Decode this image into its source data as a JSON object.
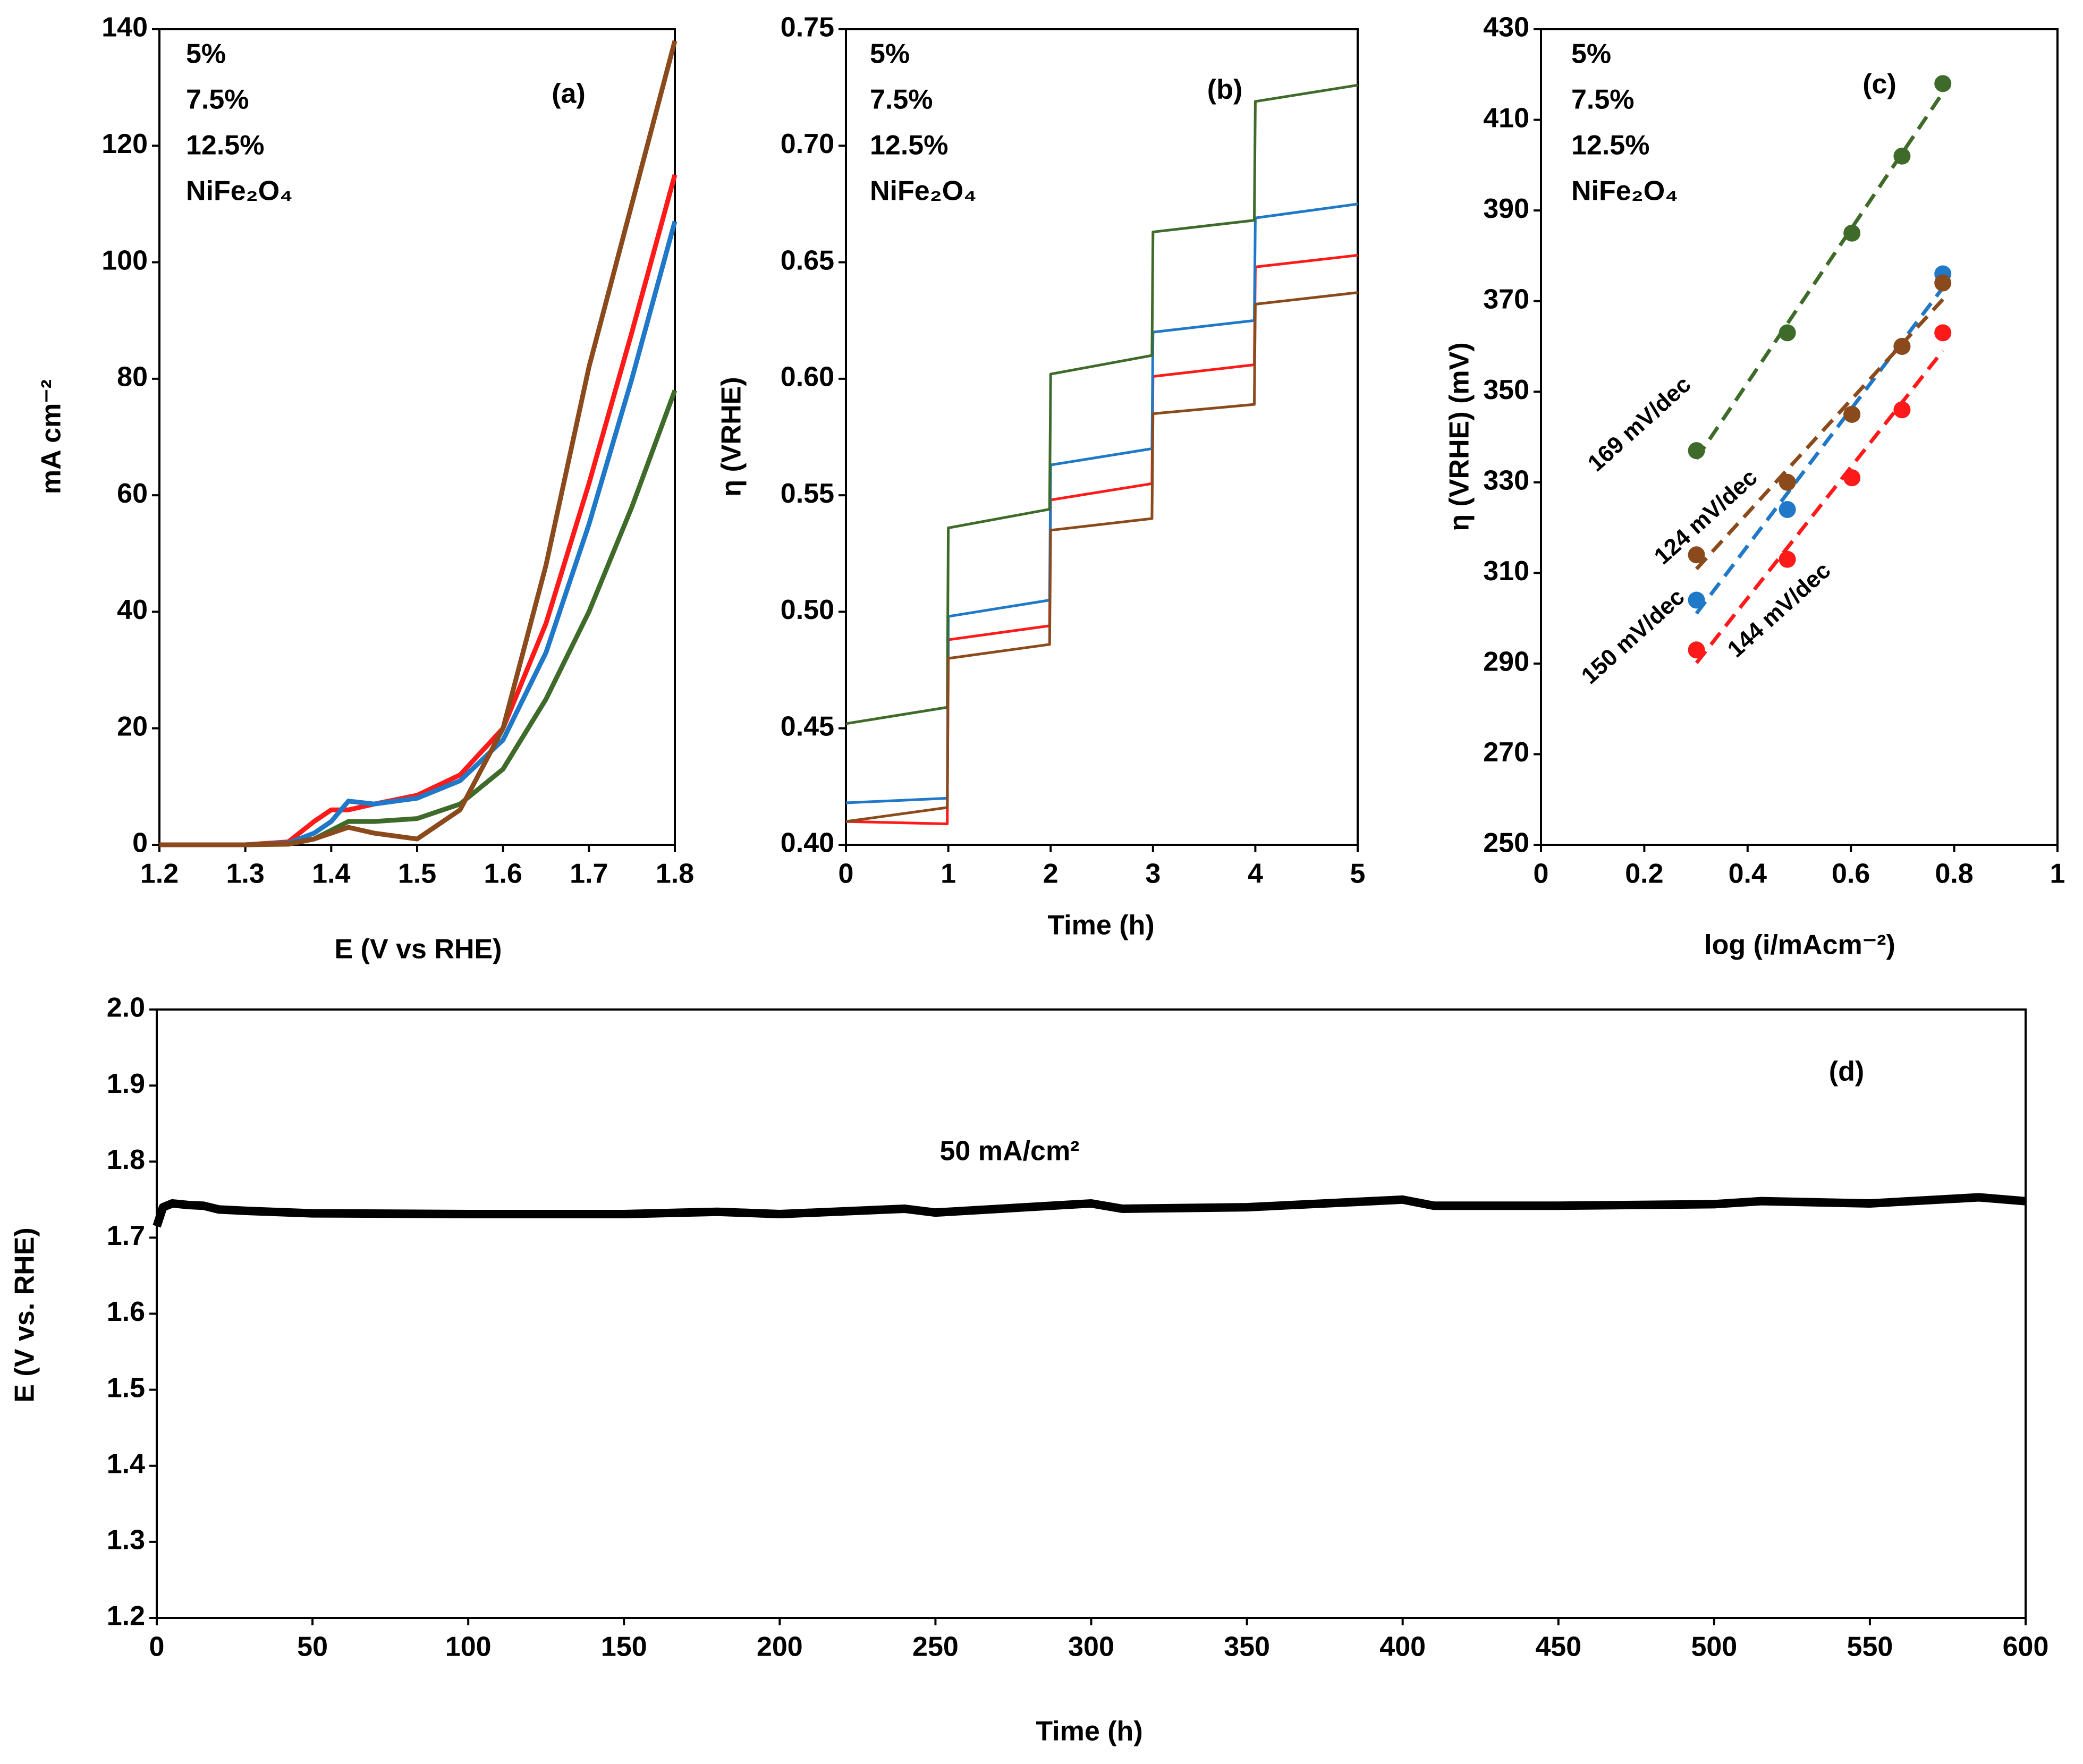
{
  "chart_data": [
    {
      "type": "line",
      "panel_label": "(a)",
      "x_label": "E (V vs RHE)",
      "y_label": "mA cm⁻²",
      "x": [
        1.2,
        1.3,
        1.35,
        1.38,
        1.4,
        1.42,
        1.45,
        1.5,
        1.55,
        1.6,
        1.65,
        1.7,
        1.75,
        1.8
      ],
      "series": [
        {
          "name": "5%",
          "color": "#ff1a1a",
          "values": [
            0,
            0,
            0.5,
            4,
            6,
            6,
            7,
            8.5,
            12,
            20,
            38,
            62,
            88,
            115
          ]
        },
        {
          "name": "7.5%",
          "color": "#1f78c8",
          "values": [
            0,
            0,
            0.3,
            2,
            4,
            7.5,
            7,
            8,
            11,
            18,
            33,
            55,
            80,
            107
          ]
        },
        {
          "name": "12.5%",
          "color": "#3f6b2a",
          "values": [
            0,
            0,
            0.2,
            1,
            2.5,
            4,
            4,
            4.5,
            7,
            13,
            25,
            40,
            58,
            78
          ]
        },
        {
          "name": "NiFe₂O₄",
          "color": "#8b4a1c",
          "values": [
            0,
            0,
            0.1,
            1,
            2,
            3,
            2,
            1,
            6,
            20,
            48,
            82,
            110,
            138
          ]
        }
      ],
      "xlim": [
        1.2,
        1.8
      ],
      "xticks": [
        1.2,
        1.3,
        1.4,
        1.5,
        1.6,
        1.7,
        1.8
      ],
      "ylim": [
        0,
        140
      ],
      "yticks": [
        0,
        20,
        40,
        60,
        80,
        100,
        120,
        140
      ],
      "legend": "upper-left"
    },
    {
      "type": "line",
      "panel_label": "(b)",
      "x_label": "Time (h)",
      "y_label": "η (VRHE)",
      "x": [
        0,
        0.99,
        1,
        1.99,
        2,
        2.99,
        3,
        3.99,
        4,
        5
      ],
      "series": [
        {
          "name": "5%",
          "color": "#ff1a1a",
          "values": [
            0.41,
            0.409,
            0.488,
            0.494,
            0.548,
            0.555,
            0.601,
            0.606,
            0.648,
            0.653
          ]
        },
        {
          "name": "7.5%",
          "color": "#1f78c8",
          "values": [
            0.418,
            0.42,
            0.498,
            0.505,
            0.563,
            0.57,
            0.62,
            0.625,
            0.669,
            0.675
          ]
        },
        {
          "name": "12.5%",
          "color": "#3f6b2a",
          "values": [
            0.452,
            0.459,
            0.536,
            0.544,
            0.602,
            0.61,
            0.663,
            0.668,
            0.719,
            0.726
          ]
        },
        {
          "name": "NiFe₂O₄",
          "color": "#8b4a1c",
          "values": [
            0.41,
            0.416,
            0.48,
            0.486,
            0.535,
            0.54,
            0.585,
            0.589,
            0.632,
            0.637
          ]
        }
      ],
      "xlim": [
        0,
        5
      ],
      "xticks": [
        0,
        1,
        2,
        3,
        4,
        5
      ],
      "ylim": [
        0.4,
        0.75
      ],
      "yticks": [
        {
          "value": 0.4,
          "label": "0.40"
        },
        {
          "value": 0.45,
          "label": "0.45"
        },
        {
          "value": 0.5,
          "label": "0.50"
        },
        {
          "value": 0.55,
          "label": "0.55"
        },
        {
          "value": 0.6,
          "label": "0.60"
        },
        {
          "value": 0.65,
          "label": "0.65"
        },
        {
          "value": 0.7,
          "label": "0.70"
        },
        {
          "value": 0.75,
          "label": "0.75"
        }
      ],
      "legend": "upper-left"
    },
    {
      "type": "scatter",
      "panel_label": "(c)",
      "x_label": "log (i/mAcm⁻²)",
      "y_label": "η (VRHE) (mV)",
      "x": [
        0.301,
        0.477,
        0.602,
        0.699,
        0.778
      ],
      "series": [
        {
          "name": "5%",
          "color": "#ff1a1a",
          "values": [
            293,
            313,
            331,
            346,
            363
          ],
          "slope_label": "144 mV/dec"
        },
        {
          "name": "7.5%",
          "color": "#1f78c8",
          "values": [
            304,
            324,
            345,
            360,
            376
          ],
          "slope_label": "150 mV/dec"
        },
        {
          "name": "12.5%",
          "color": "#3f6b2a",
          "values": [
            337,
            363,
            385,
            402,
            418
          ],
          "slope_label": "169 mV/dec"
        },
        {
          "name": "NiFe₂O₄",
          "color": "#8b4a1c",
          "values": [
            314,
            330,
            345,
            360,
            374
          ],
          "slope_label": "124 mV/dec"
        }
      ],
      "xlim": [
        0,
        1
      ],
      "xticks": [
        0,
        0.2,
        0.4,
        0.6,
        0.8,
        1
      ],
      "ylim": [
        250,
        430
      ],
      "yticks": [
        250,
        270,
        290,
        310,
        330,
        350,
        370,
        390,
        410,
        430
      ],
      "trendline": true,
      "legend": "upper-left"
    },
    {
      "type": "line",
      "panel_label": "(d)",
      "x_label": "Time (h)",
      "y_label": "E (V vs. RHE)",
      "annotation": "50 mA/cm²",
      "x": [
        0,
        2,
        5,
        10,
        15,
        17,
        20,
        30,
        50,
        100,
        150,
        180,
        200,
        240,
        250,
        300,
        310,
        350,
        400,
        410,
        450,
        500,
        515,
        550,
        585,
        600
      ],
      "values": [
        1.715,
        1.74,
        1.745,
        1.743,
        1.742,
        1.74,
        1.737,
        1.735,
        1.732,
        1.731,
        1.731,
        1.734,
        1.731,
        1.738,
        1.733,
        1.745,
        1.738,
        1.74,
        1.75,
        1.742,
        1.742,
        1.744,
        1.748,
        1.745,
        1.753,
        1.748
      ],
      "color": "#000000",
      "xlim": [
        0,
        600
      ],
      "xticks": [
        0,
        50,
        100,
        150,
        200,
        250,
        300,
        350,
        400,
        450,
        500,
        550,
        600
      ],
      "ylim": [
        1.2,
        2.0
      ],
      "yticks": [
        1.2,
        1.3,
        1.4,
        1.5,
        1.6,
        1.7,
        1.8,
        1.9,
        {
          "value": 2.0,
          "label": "2.0"
        }
      ]
    }
  ]
}
